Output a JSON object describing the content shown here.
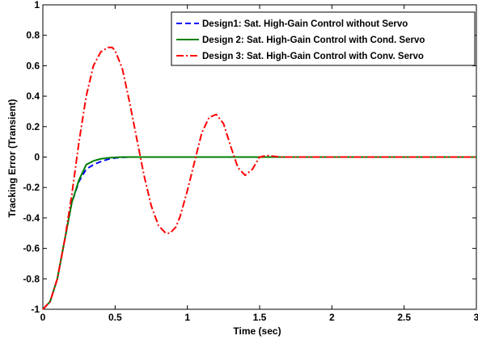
{
  "chart_data": {
    "type": "line",
    "title": "",
    "xlabel": "Time (sec)",
    "ylabel": "Tracking Error (Transient)",
    "xlim": [
      0,
      3
    ],
    "ylim": [
      -1,
      1
    ],
    "xticks": [
      0,
      0.5,
      1,
      1.5,
      2,
      2.5,
      3
    ],
    "xtick_labels": [
      "0",
      "0.5",
      "1",
      "1.5",
      "2",
      "2.5",
      "3"
    ],
    "yticks": [
      -1,
      -0.8,
      -0.6,
      -0.4,
      -0.2,
      0,
      0.2,
      0.4,
      0.6,
      0.8,
      1
    ],
    "ytick_labels": [
      "-1",
      "-0.8",
      "-0.6",
      "-0.4",
      "-0.2",
      "0",
      "0.2",
      "0.4",
      "0.6",
      "0.8",
      "1"
    ],
    "grid": false,
    "legend_position": "top-right",
    "series": [
      {
        "name": "Design1: Sat. High-Gain Control without Servo",
        "color": "#0000ff",
        "style": "dashed",
        "x": [
          0,
          0.05,
          0.1,
          0.15,
          0.2,
          0.25,
          0.3,
          0.35,
          0.4,
          0.45,
          0.5,
          0.55,
          0.6,
          0.7,
          0.8,
          1.0,
          1.5,
          2.0,
          2.5,
          3.0
        ],
        "y": [
          -1,
          -0.95,
          -0.8,
          -0.55,
          -0.3,
          -0.16,
          -0.08,
          -0.05,
          -0.03,
          -0.015,
          -0.006,
          -0.002,
          0,
          0,
          0,
          0,
          0,
          0,
          0,
          0
        ]
      },
      {
        "name": "Design 2: Sat. High-Gain Control with Cond. Servo",
        "color": "#008000",
        "style": "solid",
        "x": [
          0,
          0.05,
          0.1,
          0.15,
          0.2,
          0.25,
          0.3,
          0.35,
          0.4,
          0.45,
          0.5,
          0.55,
          0.6,
          0.7,
          0.8,
          1.0,
          1.5,
          2.0,
          2.5,
          3.0
        ],
        "y": [
          -1,
          -0.95,
          -0.8,
          -0.55,
          -0.3,
          -0.15,
          -0.05,
          -0.025,
          -0.012,
          -0.005,
          -0.002,
          0,
          0,
          0,
          0,
          0,
          0,
          0,
          0,
          0
        ]
      },
      {
        "name": "Design 3: Sat. High-Gain Control with Conv. Servo",
        "color": "#ff0000",
        "style": "dashdot",
        "x": [
          0,
          0.05,
          0.1,
          0.15,
          0.2,
          0.25,
          0.3,
          0.35,
          0.4,
          0.45,
          0.48,
          0.5,
          0.55,
          0.6,
          0.65,
          0.7,
          0.75,
          0.8,
          0.85,
          0.88,
          0.92,
          0.95,
          1.0,
          1.05,
          1.1,
          1.15,
          1.2,
          1.25,
          1.3,
          1.35,
          1.4,
          1.45,
          1.5,
          1.55,
          1.6,
          1.65,
          1.7,
          2.0,
          2.5,
          3.0
        ],
        "y": [
          -1,
          -0.95,
          -0.8,
          -0.55,
          -0.25,
          0.1,
          0.4,
          0.6,
          0.69,
          0.72,
          0.72,
          0.7,
          0.58,
          0.36,
          0.12,
          -0.12,
          -0.32,
          -0.45,
          -0.5,
          -0.5,
          -0.46,
          -0.39,
          -0.22,
          -0.03,
          0.16,
          0.26,
          0.28,
          0.22,
          0.07,
          -0.07,
          -0.12,
          -0.08,
          0,
          0.01,
          0.005,
          0,
          0,
          0,
          0,
          0
        ]
      }
    ]
  }
}
